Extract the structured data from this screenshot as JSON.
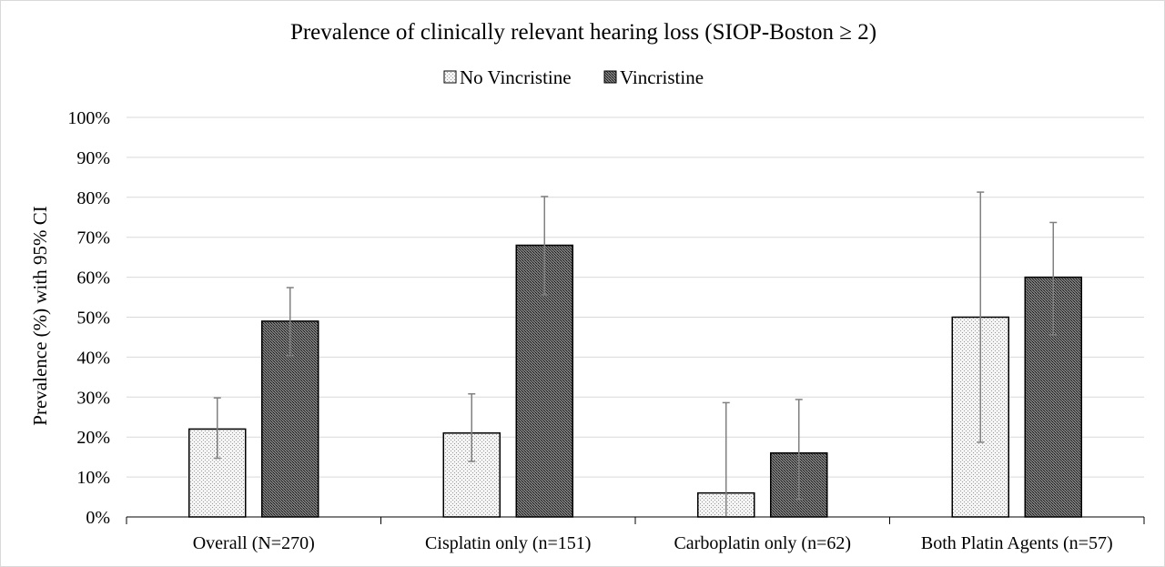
{
  "chart_data": {
    "type": "bar",
    "title": "Prevalence of clinically relevant hearing loss (SIOP-Boston ≥ 2)",
    "xlabel": "",
    "ylabel": "Prevalence (%) with 95% CI",
    "ylim": [
      0,
      100
    ],
    "ytick_values": [
      0,
      10,
      20,
      30,
      40,
      50,
      60,
      70,
      80,
      90,
      100
    ],
    "ytick_labels": [
      "0%",
      "10%",
      "20%",
      "30%",
      "40%",
      "50%",
      "60%",
      "70%",
      "80%",
      "90%",
      "100%"
    ],
    "categories": [
      "Overall (N=270)",
      "Cisplatin only (n=151)",
      "Carboplatin only (n=62)",
      "Both Platin Agents (n=57)"
    ],
    "series": [
      {
        "name": "No Vincristine",
        "values": [
          22,
          21,
          6,
          50
        ],
        "ci_lower": [
          14.7,
          13.9,
          0,
          18.7
        ],
        "ci_upper": [
          29.8,
          30.8,
          28.6,
          81.3
        ],
        "color": "#f2f2f2",
        "pattern": "light-dots"
      },
      {
        "name": "Vincristine",
        "values": [
          49,
          68,
          16,
          60
        ],
        "ci_lower": [
          40.4,
          55.6,
          4.4,
          45.6
        ],
        "ci_upper": [
          57.4,
          80.2,
          29.4,
          73.7
        ],
        "color": "#595959",
        "pattern": "dark-dots"
      }
    ],
    "grid": true,
    "legend_position": "top-center",
    "colors": {
      "axis": "#000000",
      "grid": "#d9d9d9",
      "error_bar": "#808080",
      "bar_outline": "#000000"
    }
  }
}
